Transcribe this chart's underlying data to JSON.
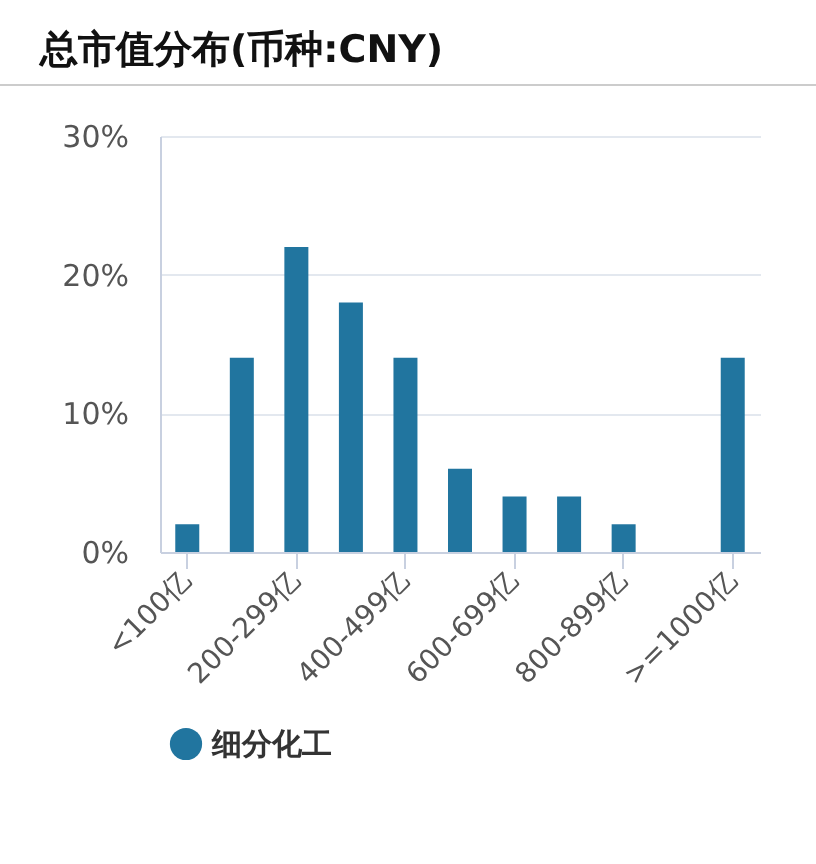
{
  "chart_data": {
    "type": "bar",
    "title": "总市值分布(币种:CNY)",
    "categories": [
      "<100亿",
      null,
      "200-299亿",
      null,
      "400-499亿",
      null,
      "600-699亿",
      null,
      "800-899亿",
      null,
      ">=1000亿"
    ],
    "series": [
      {
        "name": "细分化工",
        "color": "#21759f",
        "values": [
          2,
          14,
          22,
          18,
          14,
          6,
          4,
          4,
          2,
          0,
          14
        ]
      }
    ],
    "ylim": [
      0,
      30
    ],
    "yticks": [
      {
        "value": 0,
        "label": "0%"
      },
      {
        "value": 10,
        "label": "10%"
      },
      {
        "value": 20,
        "label": "20%"
      },
      {
        "value": 30,
        "label": "30%"
      }
    ],
    "grid": "y",
    "legend": "bottom"
  }
}
